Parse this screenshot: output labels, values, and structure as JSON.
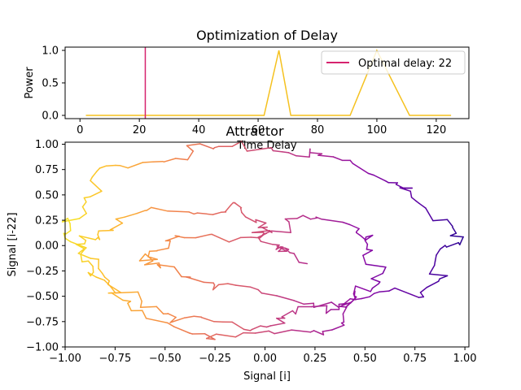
{
  "chart_data": [
    {
      "type": "line",
      "title": "Optimization of Delay",
      "xlabel": "Time Delay",
      "ylabel": "Power",
      "xlim": [
        -5,
        131
      ],
      "ylim": [
        -0.05,
        1.05
      ],
      "xticks": [
        0,
        20,
        40,
        60,
        80,
        100,
        120
      ],
      "yticks": [
        0.0,
        0.5,
        1.0
      ],
      "series": [
        {
          "name": "",
          "color": "#f5c11f",
          "x": [
            2,
            62,
            67,
            71,
            91,
            100,
            111,
            125
          ],
          "y": [
            0,
            0,
            1,
            0,
            0,
            1,
            0,
            0
          ]
        }
      ],
      "vline": {
        "x": 22,
        "color": "#d6236e",
        "label": "Optimal delay: 22"
      },
      "legend": "top-right"
    },
    {
      "type": "line",
      "title": "Attractor",
      "xlabel": "Signal [i]",
      "ylabel": "Signal [i-22]",
      "xlim": [
        -1.0,
        1.02
      ],
      "ylim": [
        -1.0,
        1.02
      ],
      "xticks": [
        -1.0,
        -0.75,
        -0.5,
        -0.25,
        0.0,
        0.25,
        0.5,
        0.75,
        1.0
      ],
      "yticks": [
        -1.0,
        -0.75,
        -0.5,
        -0.25,
        0.0,
        0.25,
        0.5,
        0.75,
        1.0
      ],
      "colormap": "plasma",
      "trajectory": [
        [
          0.2,
          -0.12
        ],
        [
          0.1,
          -0.05
        ],
        [
          0.02,
          0.02
        ],
        [
          0.0,
          0.1
        ],
        [
          -0.05,
          0.25
        ],
        [
          -0.1,
          0.38
        ],
        [
          -0.3,
          0.36
        ],
        [
          -0.6,
          0.3
        ],
        [
          -0.85,
          0.15
        ],
        [
          -0.9,
          0.0
        ],
        [
          -0.85,
          -0.25
        ],
        [
          -0.7,
          -0.55
        ],
        [
          -0.5,
          -0.8
        ],
        [
          -0.2,
          -0.92
        ],
        [
          0.2,
          -0.85
        ],
        [
          0.4,
          -0.75
        ],
        [
          0.48,
          -0.45
        ],
        [
          0.55,
          -0.2
        ],
        [
          0.52,
          0.05
        ],
        [
          0.4,
          0.25
        ],
        [
          0.2,
          0.25
        ],
        [
          -0.1,
          0.1
        ],
        [
          -0.4,
          0.05
        ],
        [
          -0.6,
          -0.05
        ],
        [
          -0.55,
          -0.2
        ],
        [
          -0.4,
          -0.3
        ],
        [
          -0.1,
          -0.45
        ],
        [
          0.2,
          -0.55
        ],
        [
          0.5,
          -0.55
        ],
        [
          0.75,
          -0.45
        ],
        [
          0.9,
          -0.2
        ],
        [
          0.95,
          0.05
        ],
        [
          0.85,
          0.3
        ],
        [
          0.7,
          0.55
        ],
        [
          0.5,
          0.75
        ],
        [
          0.25,
          0.9
        ],
        [
          0.0,
          0.98
        ],
        [
          -0.3,
          0.95
        ],
        [
          -0.6,
          0.85
        ],
        [
          -0.8,
          0.68
        ],
        [
          -0.95,
          0.4
        ],
        [
          -0.97,
          0.1
        ],
        [
          -0.93,
          -0.1
        ],
        [
          -0.8,
          -0.4
        ],
        [
          -0.6,
          -0.6
        ],
        [
          -0.35,
          -0.75
        ],
        [
          -0.1,
          -0.8
        ],
        [
          0.1,
          -0.72
        ],
        [
          0.3,
          -0.62
        ],
        [
          0.45,
          -0.45
        ]
      ]
    }
  ]
}
